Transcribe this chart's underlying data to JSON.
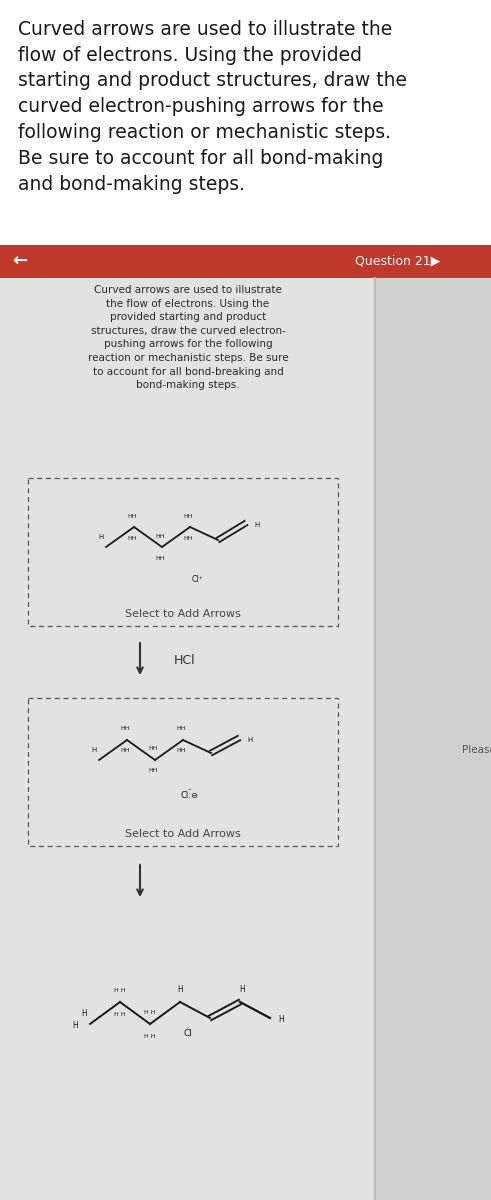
{
  "header_text": "Curved arrows are used to illustrate the\nflow of electrons. Using the provided\nstarting and product structures, draw the\ncurved electron-pushing arrows for the\nfollowing reaction or mechanistic steps.\nBe sure to account for all bond-making\nand bond-making steps.",
  "header_fontsize": 13.5,
  "nav_left": "←",
  "nav_right": "Question 21▶",
  "nav_bg": "#c0392b",
  "inner_text": "Curved arrows are used to illustrate\nthe flow of electrons. Using the\nprovided starting and product\nstructures, draw the curved electron-\npushing arrows for the following\nreaction or mechanistic steps. Be sure\nto account for all bond-breaking and\nbond-making steps.",
  "inner_text_fontsize": 7.5,
  "box1_label": "Select to Add Arrows",
  "box2_label": "Select to Add Arrows",
  "reagent_label": "HCl",
  "side_text": "Please se",
  "molecule_color": "#1a1a1a",
  "panel_bg": "#d0d0d0",
  "card_bg": "#e8e8e8",
  "white_bg": "#ffffff"
}
